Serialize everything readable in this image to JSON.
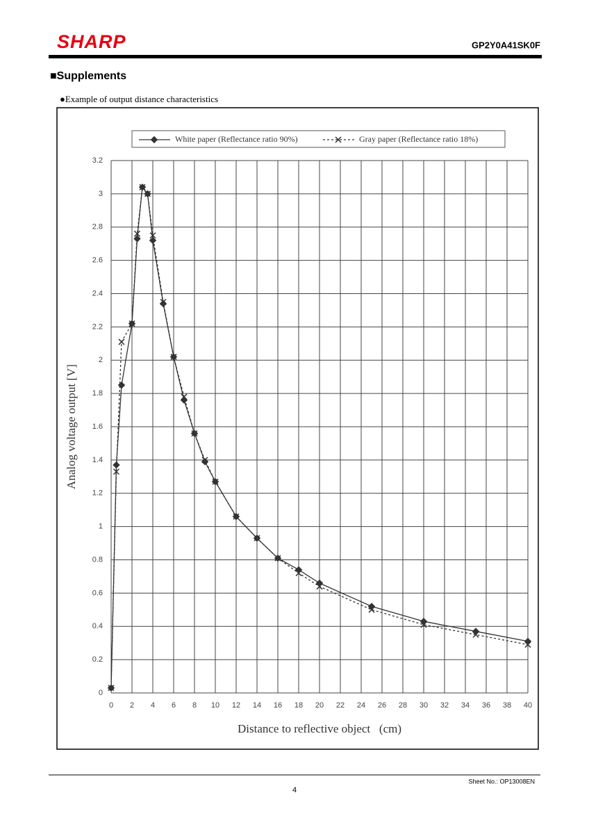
{
  "header": {
    "logo": "SHARP",
    "model": "GP2Y0A41SK0F"
  },
  "section_title": "■Supplements",
  "caption": "●Example of output distance characteristics",
  "chart_data": {
    "type": "line",
    "x_label": "Distance to reflective object   (cm)",
    "y_label": "Analog voltage output [V]",
    "xlim": [
      0,
      40
    ],
    "ylim": [
      0,
      3.2
    ],
    "xticks": [
      0,
      2,
      4,
      6,
      8,
      10,
      12,
      14,
      16,
      18,
      20,
      22,
      24,
      26,
      28,
      30,
      32,
      34,
      36,
      38,
      40
    ],
    "yticks": [
      0,
      0.2,
      0.4,
      0.6,
      0.8,
      1,
      1.2,
      1.4,
      1.6,
      1.8,
      2,
      2.2,
      2.4,
      2.6,
      2.8,
      3,
      3.2
    ],
    "grid": true,
    "legend": "top",
    "x": [
      0,
      0.5,
      1,
      2,
      2.5,
      3,
      3.5,
      4,
      5,
      6,
      7,
      8,
      9,
      10,
      12,
      14,
      16,
      18,
      20,
      25,
      30,
      35,
      40
    ],
    "series": [
      {
        "name": "White paper (Reflectance ratio 90%)",
        "color": "#333333",
        "line_style": "solid",
        "marker": "diamond",
        "values": [
          0.03,
          1.37,
          1.85,
          2.22,
          2.73,
          3.04,
          3.0,
          2.72,
          2.34,
          2.02,
          1.76,
          1.56,
          1.39,
          1.27,
          1.06,
          0.93,
          0.81,
          0.74,
          0.66,
          0.52,
          0.43,
          0.37,
          0.31
        ]
      },
      {
        "name": "Gray paper (Reflectance ratio 18%)",
        "color": "#333333",
        "line_style": "dotted",
        "marker": "x",
        "values": [
          0.03,
          1.33,
          2.11,
          2.22,
          2.76,
          3.04,
          3.0,
          2.75,
          2.35,
          2.02,
          1.78,
          1.56,
          1.4,
          1.27,
          1.06,
          0.93,
          0.81,
          0.72,
          0.64,
          0.5,
          0.41,
          0.35,
          0.29
        ]
      }
    ]
  },
  "footer": {
    "sheet": "Sheet No.: OP13008EN",
    "page": "4"
  }
}
